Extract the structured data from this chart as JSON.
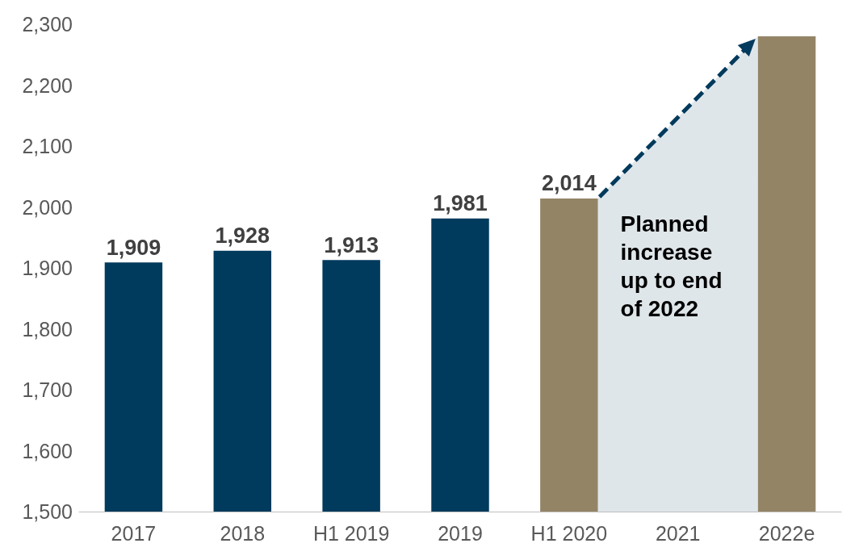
{
  "chart_data": {
    "type": "bar",
    "categories": [
      "2017",
      "2018",
      "H1 2019",
      "2019",
      "H1 2020",
      "2021",
      "2022e"
    ],
    "values": [
      1909,
      1928,
      1913,
      1981,
      2014,
      null,
      2280
    ],
    "colors": [
      "#003a5c",
      "#003a5c",
      "#003a5c",
      "#003a5c",
      "#948466",
      null,
      "#948466"
    ],
    "value_labels": [
      "1,909",
      "1,928",
      "1,913",
      "1,981",
      "2,014",
      null,
      null
    ],
    "ylim": [
      1500,
      2300
    ],
    "yticks": [
      {
        "value": 1500,
        "label": "1,500"
      },
      {
        "value": 1600,
        "label": "1,600"
      },
      {
        "value": 1700,
        "label": "1,700"
      },
      {
        "value": 1800,
        "label": "1,800"
      },
      {
        "value": 1900,
        "label": "1,900"
      },
      {
        "value": 2000,
        "label": "2,000"
      },
      {
        "value": 2100,
        "label": "2,100"
      },
      {
        "value": 2200,
        "label": "2,200"
      },
      {
        "value": 2300,
        "label": "2,300"
      }
    ],
    "grid": false,
    "annotations": [
      "Planned increase up to end of 2022"
    ]
  }
}
